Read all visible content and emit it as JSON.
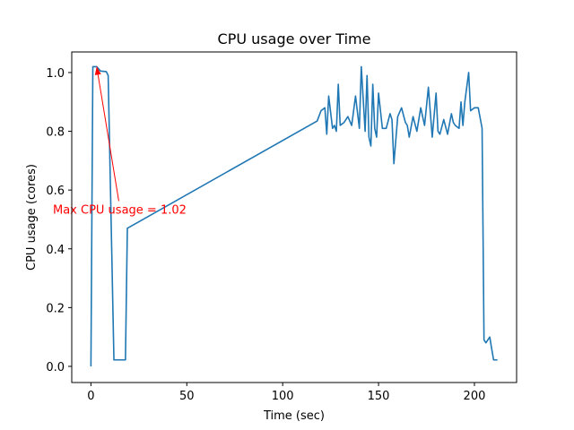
{
  "chart_data": {
    "type": "line",
    "title": "CPU usage over Time",
    "xlabel": "Time (sec)",
    "ylabel": "CPU usage (cores)",
    "xlim": [
      -10,
      222
    ],
    "ylim": [
      -0.055,
      1.07
    ],
    "xticks": [
      0,
      50,
      100,
      150,
      200
    ],
    "yticks": [
      0.0,
      0.2,
      0.4,
      0.6,
      0.8,
      1.0
    ],
    "xtick_labels": [
      "0",
      "50",
      "100",
      "150",
      "200"
    ],
    "ytick_labels": [
      "0.0",
      "0.2",
      "0.4",
      "0.6",
      "0.8",
      "1.0"
    ],
    "grid": false,
    "series": [
      {
        "name": "CPU usage",
        "color": "#1f77b4",
        "x": [
          0,
          1,
          3,
          5,
          8,
          9,
          12,
          14,
          16,
          18,
          19,
          118,
          120,
          122,
          123,
          124,
          126,
          127,
          128,
          129,
          130,
          132,
          134,
          136,
          138,
          140,
          141,
          143,
          144,
          145,
          146,
          147,
          148,
          149,
          150,
          152,
          154,
          156,
          157,
          158,
          160,
          162,
          164,
          165,
          166,
          168,
          170,
          172,
          174,
          176,
          178,
          180,
          181,
          182,
          184,
          186,
          188,
          189,
          190,
          192,
          193,
          194,
          195,
          196,
          197,
          198,
          200,
          202,
          204,
          205,
          206,
          207,
          208,
          209,
          210,
          211,
          212
        ],
        "y": [
          0.0,
          1.02,
          1.02,
          1.005,
          1.003,
          0.99,
          0.022,
          0.022,
          0.022,
          0.022,
          0.47,
          0.835,
          0.87,
          0.88,
          0.79,
          0.92,
          0.81,
          0.82,
          0.8,
          0.96,
          0.82,
          0.83,
          0.85,
          0.82,
          0.92,
          0.81,
          1.02,
          0.8,
          0.99,
          0.78,
          0.75,
          0.96,
          0.81,
          0.78,
          0.93,
          0.81,
          0.81,
          0.86,
          0.84,
          0.69,
          0.85,
          0.88,
          0.83,
          0.82,
          0.78,
          0.85,
          0.8,
          0.88,
          0.82,
          0.95,
          0.78,
          0.93,
          0.8,
          0.79,
          0.84,
          0.79,
          0.86,
          0.83,
          0.82,
          0.81,
          0.9,
          0.82,
          0.9,
          0.95,
          1.0,
          0.87,
          0.88,
          0.88,
          0.81,
          0.09,
          0.08,
          0.09,
          0.1,
          0.06,
          0.022,
          0.022,
          0.022
        ]
      }
    ],
    "annotations": [
      {
        "text": "Max CPU usage = 1.02",
        "color": "#ff0000",
        "point": [
          3,
          1.02
        ],
        "text_at": [
          15,
          0.52
        ]
      }
    ]
  }
}
